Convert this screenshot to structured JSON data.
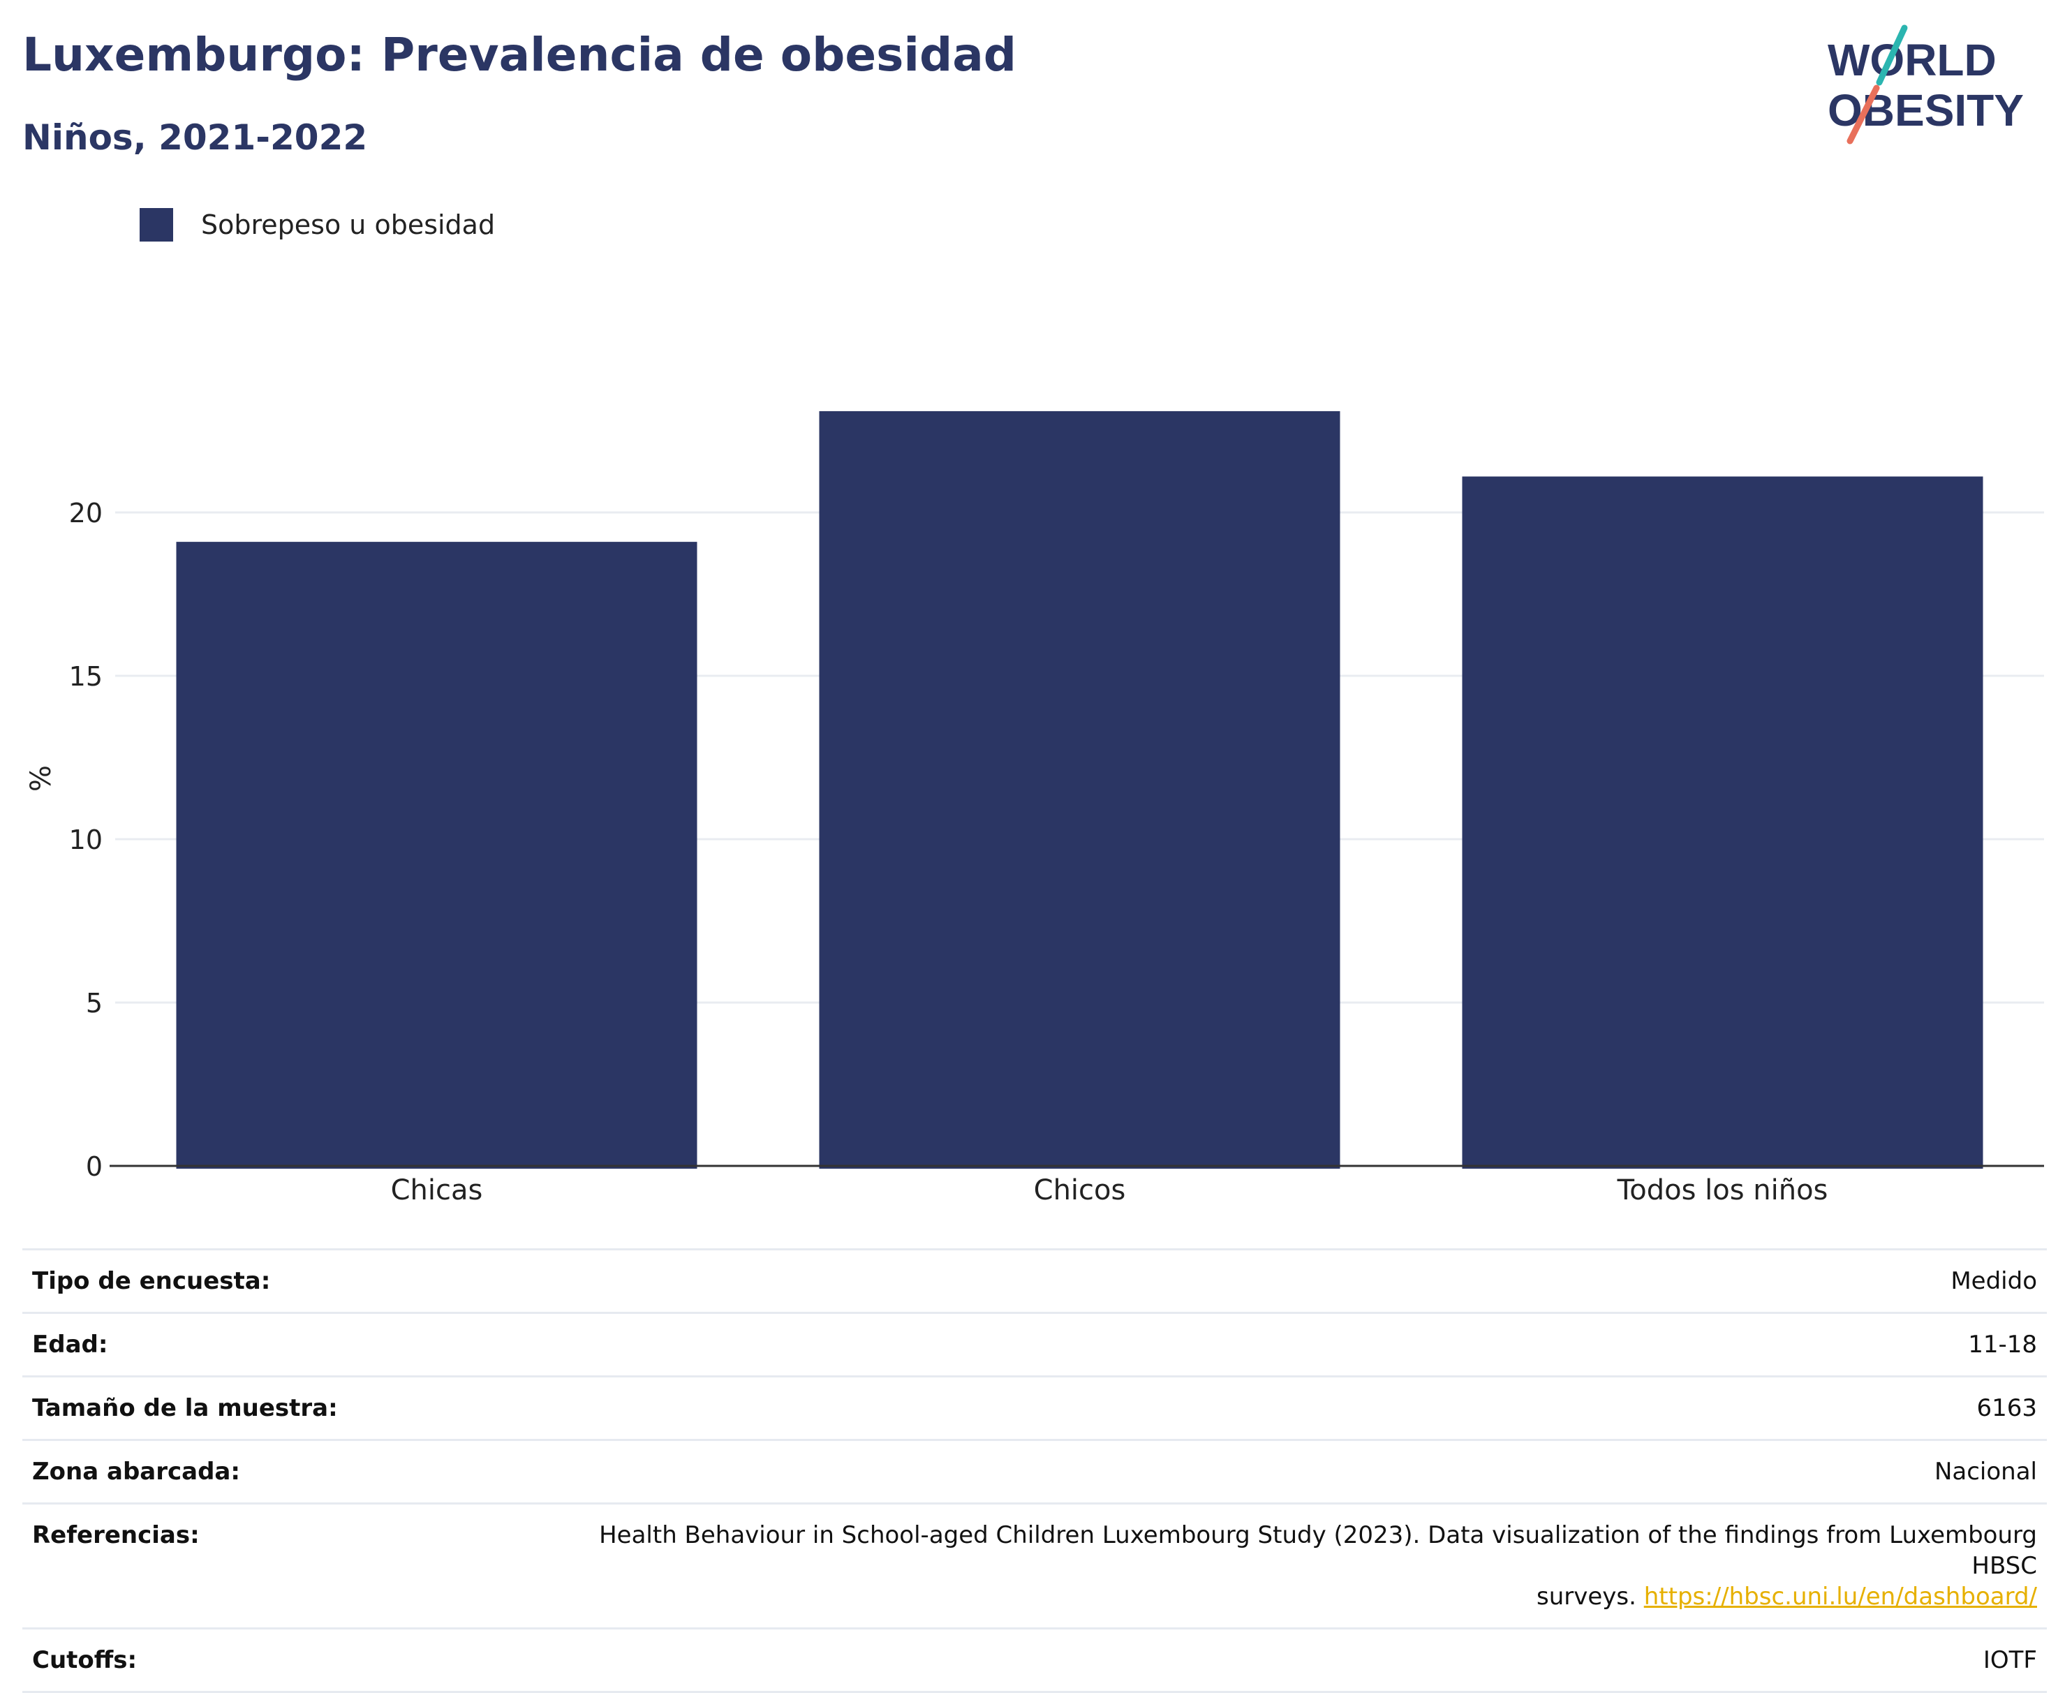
{
  "header": {
    "title": "Luxemburgo: Prevalencia de obesidad",
    "subtitle": "Niños, 2021-2022"
  },
  "logo": {
    "line1": "WORLD",
    "line2": "OBESITY"
  },
  "chart_data": {
    "type": "bar",
    "categories": [
      "Chicas",
      "Chicos",
      "Todos los niños"
    ],
    "series": [
      {
        "name": "Sobrepeso u obesidad",
        "values": [
          19.1,
          23.1,
          21.1
        ],
        "color": "#2b3664"
      }
    ],
    "ylabel": "%",
    "ylim": [
      0,
      25
    ],
    "yticks": [
      0,
      5,
      10,
      15,
      20
    ],
    "grid": true,
    "legend": "top-left"
  },
  "meta": {
    "survey_type": {
      "label": "Tipo de encuesta:",
      "value": "Medido"
    },
    "age": {
      "label": "Edad:",
      "value": "11-18"
    },
    "sample_size": {
      "label": "Tamaño de la muestra:",
      "value": "6163"
    },
    "area": {
      "label": "Zona abarcada:",
      "value": "Nacional"
    },
    "references": {
      "label": "Referencias:",
      "text_line1": "Health Behaviour in School-aged Children Luxembourg Study (2023). Data visualization of the findings from Luxembourg HBSC",
      "text_line2": "surveys.",
      "link": "https://hbsc.uni.lu/en/dashboard/"
    },
    "cutoffs": {
      "label": "Cutoffs:",
      "value": "IOTF"
    }
  }
}
